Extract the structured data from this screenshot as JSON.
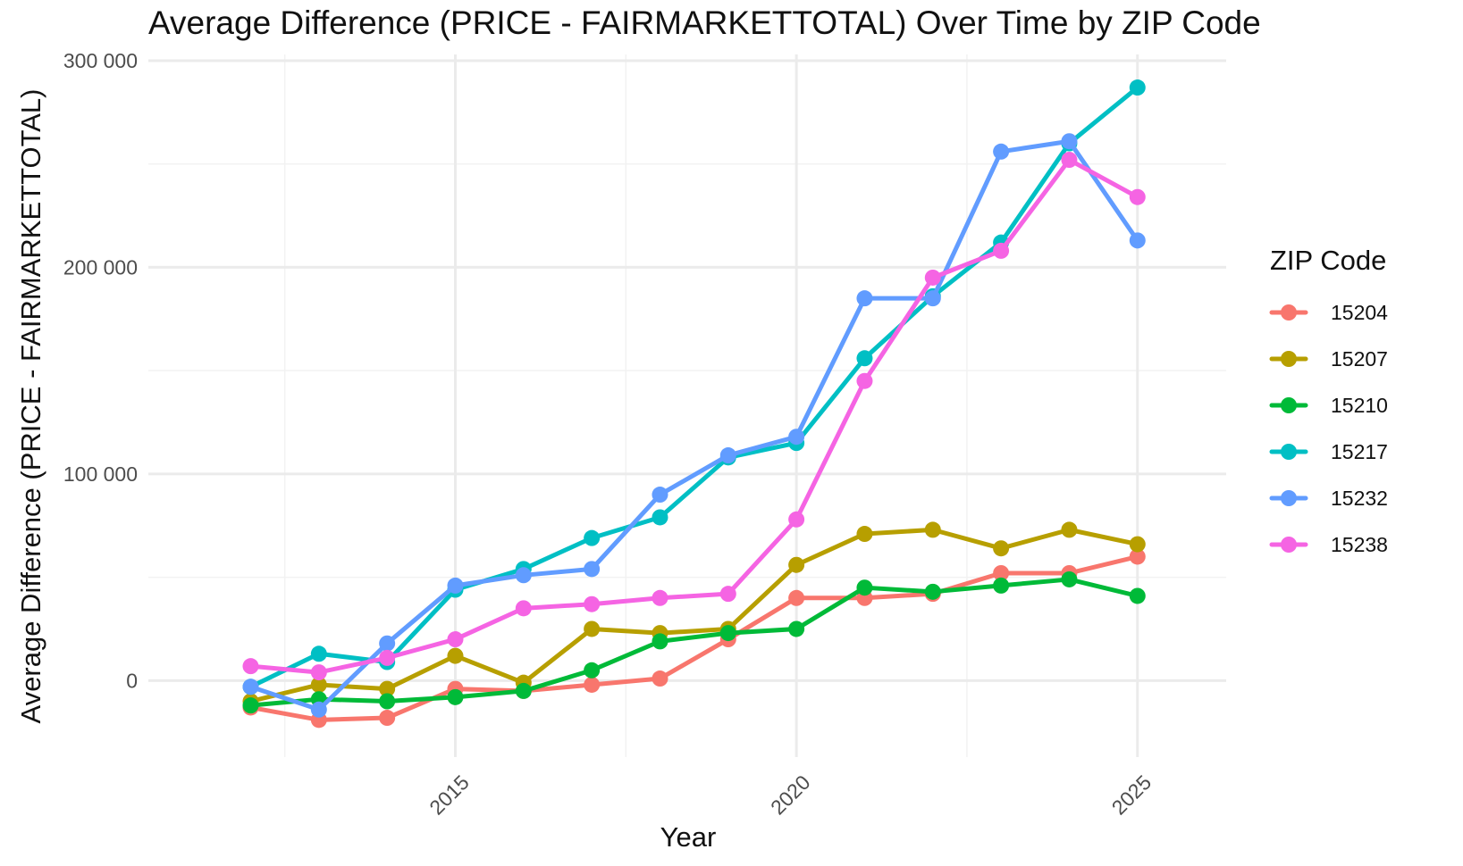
{
  "chart_data": {
    "type": "line",
    "title": "Average Difference (PRICE - FAIRMARKETTOTAL) Over Time by ZIP Code",
    "xlabel": "Year",
    "ylabel": "Average Difference (PRICE - FAIRMARKETTOTAL)",
    "legend_title": "ZIP Code",
    "legend_position": "right",
    "grid": true,
    "xlim": [
      2010.5,
      2026.3
    ],
    "ylim": [
      -37000,
      303000
    ],
    "x_ticks": [
      {
        "value": 2015,
        "label": "2015"
      },
      {
        "value": 2020,
        "label": "2020"
      },
      {
        "value": 2025,
        "label": "2025"
      }
    ],
    "y_ticks": [
      {
        "value": 0,
        "label": "0"
      },
      {
        "value": 100000,
        "label": "100 000"
      },
      {
        "value": 200000,
        "label": "200 000"
      },
      {
        "value": 300000,
        "label": "300 000"
      }
    ],
    "x": [
      2012,
      2013,
      2014,
      2015,
      2016,
      2017,
      2018,
      2019,
      2020,
      2021,
      2022,
      2023,
      2024,
      2025
    ],
    "series": [
      {
        "name": "15204",
        "color": "#F8766D",
        "values": [
          -13000,
          -19000,
          -18000,
          -4000,
          -5000,
          -2000,
          1000,
          20000,
          40000,
          40000,
          42000,
          52000,
          52000,
          60000
        ]
      },
      {
        "name": "15207",
        "color": "#B79F00",
        "values": [
          -10000,
          -2000,
          -4000,
          12000,
          -1000,
          25000,
          23000,
          25000,
          56000,
          71000,
          73000,
          64000,
          73000,
          66000
        ]
      },
      {
        "name": "15210",
        "color": "#00BA38",
        "values": [
          -12000,
          -9000,
          -10000,
          -8000,
          -5000,
          5000,
          19000,
          23000,
          25000,
          45000,
          43000,
          46000,
          49000,
          41000
        ]
      },
      {
        "name": "15217",
        "color": "#00BFC4",
        "values": [
          -3000,
          13000,
          9000,
          44000,
          54000,
          69000,
          79000,
          108000,
          115000,
          156000,
          186000,
          212000,
          260000,
          287000
        ]
      },
      {
        "name": "15232",
        "color": "#619CFF",
        "values": [
          -3000,
          -14000,
          18000,
          46000,
          51000,
          54000,
          90000,
          109000,
          118000,
          185000,
          185000,
          256000,
          261000,
          213000
        ]
      },
      {
        "name": "15238",
        "color": "#F564E3",
        "values": [
          7000,
          4000,
          11000,
          20000,
          35000,
          37000,
          40000,
          42000,
          78000,
          145000,
          195000,
          208000,
          252000,
          234000
        ]
      }
    ]
  }
}
